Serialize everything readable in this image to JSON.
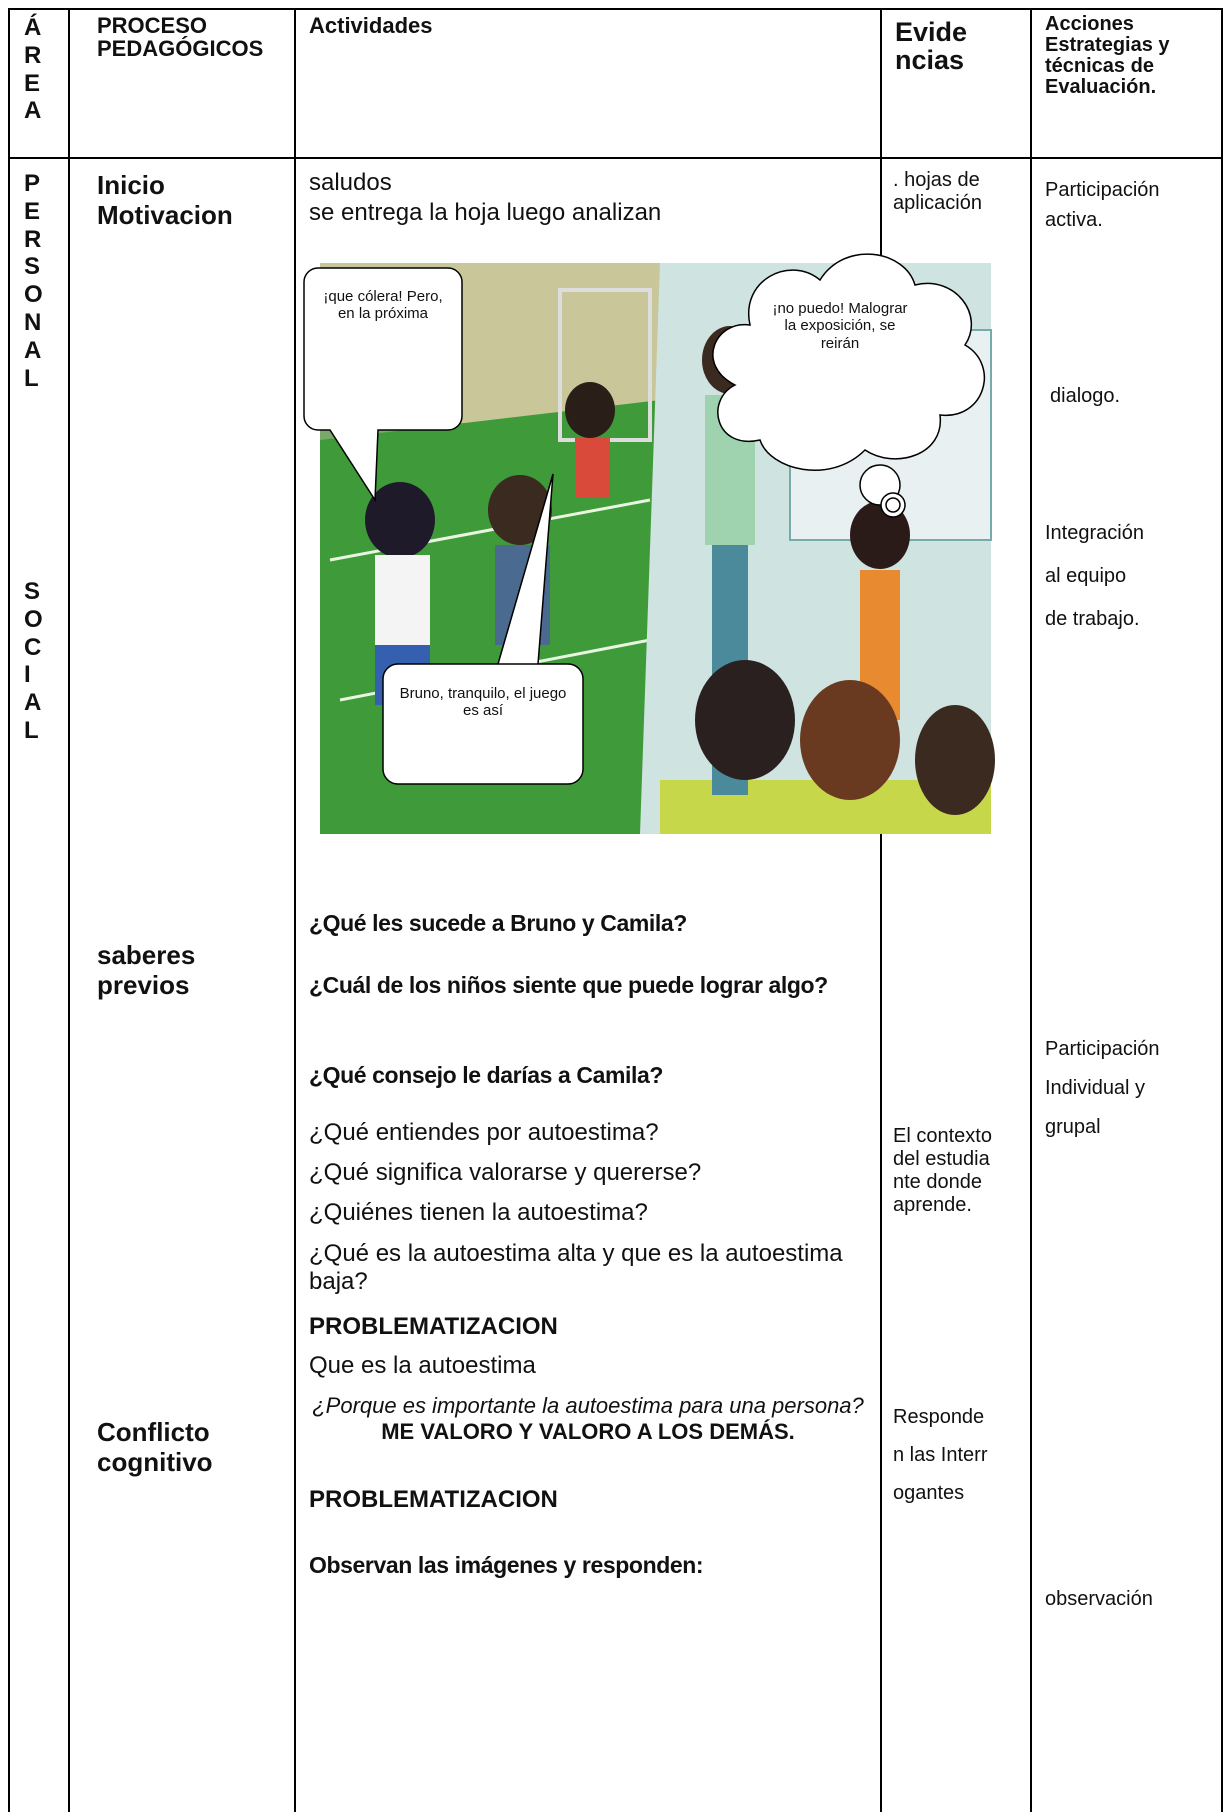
{
  "table": {
    "header": [
      "ÁREA",
      "PROCESO PEDAGÓGICOS",
      "Actividades",
      "Evidencias",
      "Acciones Estrategias y técnicas de Evaluación."
    ],
    "area": [
      "PERSONAL",
      "SOCIAL"
    ],
    "process": [
      "Inicio Motivacion",
      "saberes previos",
      "Conflicto cognitivo"
    ],
    "activities": {
      "intro": [
        "saludos",
        "se entrega la hoja luego analizan"
      ],
      "bubbles": [
        "¡que cólera! Pero, en la próxima",
        "¡no puedo! Malograr la exposición, se reirán",
        "Bruno, tranquilo, el juego es así"
      ],
      "bold_questions": [
        "¿Qué les sucede a Bruno y Camila?",
        "¿Cuál de los niños siente que puede lograr algo?",
        "¿Qué consejo le darías a Camila?"
      ],
      "questions": [
        "¿Qué entiendes por autoestima?",
        "¿Qué significa valorarse y quererse?",
        "¿Quiénes tienen la autoestima?",
        "¿Qué es la autoestima alta y que es la autoestima baja?"
      ],
      "problem_1": "PROBLEMATIZACION",
      "problem_text": "Que es la autoestima",
      "italic_question": "¿Porque es importante la autoestima para una persona?",
      "motto": "ME VALORO Y VALORO A LOS DEMÁS.",
      "problem_2": "PROBLEMATIZACION",
      "observe": "Observan las imágenes y responden:"
    },
    "evidence": [
      ". hojas de aplicación",
      "El contexto del estudiante donde aprende.",
      "Responden las Interrogantes"
    ],
    "evaluation": [
      "Participación activa.",
      "dialogo.",
      "Integración al equipo de trabajo.",
      "Participación Individual y grupal",
      "observación"
    ]
  }
}
